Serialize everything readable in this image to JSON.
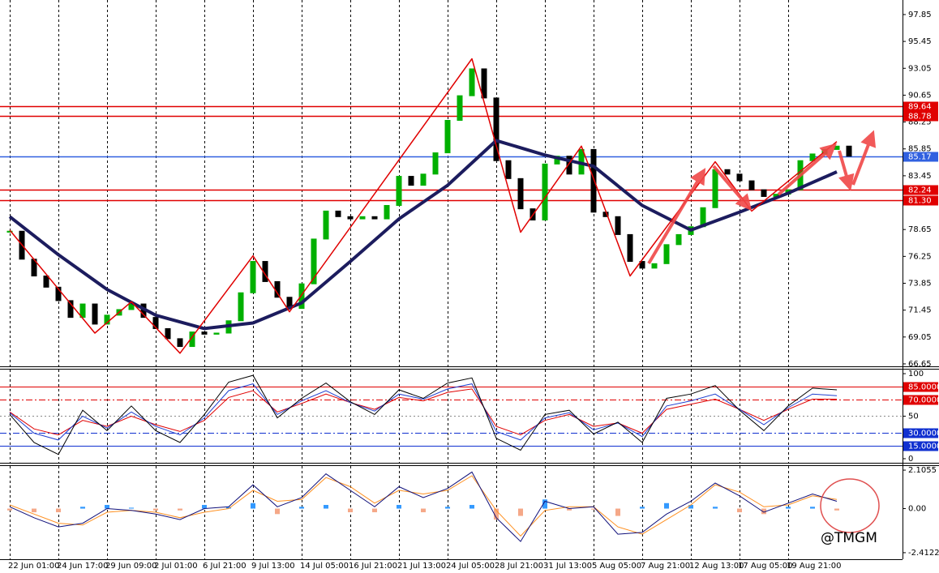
{
  "watermark": "@TMGM",
  "chart_data": [
    {
      "type": "candlestick",
      "xlim": [
        -0.8,
        73.4
      ],
      "ylim": [
        66.43,
        99.15
      ],
      "xticks": [
        {
          "value": 0,
          "label": "22 Jun 01:00"
        },
        {
          "value": 4,
          "label": "24 Jun 17:00"
        },
        {
          "value": 8,
          "label": "29 Jun 09:00"
        },
        {
          "value": 12,
          "label": "2 Jul 01:00"
        },
        {
          "value": 16,
          "label": "6 Jul 21:00"
        },
        {
          "value": 20,
          "label": "9 Jul 13:00"
        },
        {
          "value": 24,
          "label": "14 Jul 05:00"
        },
        {
          "value": 28,
          "label": "16 Jul 21:00"
        },
        {
          "value": 32,
          "label": "21 Jul 13:00"
        },
        {
          "value": 36,
          "label": "24 Jul 05:00"
        },
        {
          "value": 40,
          "label": "28 Jul 21:00"
        },
        {
          "value": 44,
          "label": "31 Jul 13:00"
        },
        {
          "value": 48,
          "label": "5 Aug 05:00"
        },
        {
          "value": 52,
          "label": "7 Aug 21:00"
        },
        {
          "value": 56,
          "label": "12 Aug 13:00"
        },
        {
          "value": 60,
          "label": "17 Aug 05:00"
        },
        {
          "value": 64,
          "label": "19 Aug 21:00"
        }
      ],
      "yticks": [
        97.85,
        95.45,
        93.05,
        90.65,
        88.25,
        85.85,
        83.45,
        81.05,
        78.65,
        76.25,
        73.85,
        71.45,
        69.05,
        66.65
      ],
      "levels": [
        {
          "value": 89.64,
          "color": "#e00000"
        },
        {
          "value": 88.78,
          "color": "#e00000"
        },
        {
          "value": 85.17,
          "color": "#3060e0"
        },
        {
          "value": 82.24,
          "color": "#e00000"
        },
        {
          "value": 81.3,
          "label": "81.30",
          "color": "#e00000"
        }
      ],
      "series": [
        {
          "color": "#00b000",
          "down_color": "#000000",
          "values": [
            78.5,
            76.0,
            74.5,
            73.5,
            72.3,
            70.8,
            72.0,
            70.2,
            71.0,
            71.5,
            72.0,
            70.8,
            69.8,
            68.9,
            68.2,
            69.5,
            69.3,
            69.4,
            70.5,
            73.0,
            75.8,
            74.0,
            72.6,
            71.6,
            73.8,
            77.8,
            80.3,
            79.8,
            79.6,
            79.8,
            79.6,
            80.8,
            83.4,
            82.6,
            83.6,
            85.5,
            88.4,
            90.6,
            93.0,
            90.4,
            84.8,
            83.2,
            80.5,
            79.5,
            84.5,
            85.2,
            83.6,
            85.8,
            80.2,
            79.8,
            78.2,
            75.8,
            75.2,
            75.6,
            77.3,
            78.2,
            78.9,
            80.6,
            84.0,
            83.6,
            83.0,
            82.2,
            81.6,
            81.8,
            82.2,
            84.8,
            85.4,
            85.8,
            86.1,
            85.2
          ]
        },
        {
          "color": "#1c1c5e",
          "x": [
            0,
            4,
            8,
            12,
            16,
            20,
            24,
            28,
            32,
            36,
            40,
            44,
            48,
            52,
            56,
            60,
            64,
            68
          ],
          "values": [
            79.8,
            76.4,
            73.3,
            71.0,
            69.8,
            70.3,
            72.1,
            75.8,
            79.6,
            82.6,
            86.6,
            85.3,
            84.3,
            80.8,
            78.6,
            80.2,
            81.9,
            83.8
          ]
        },
        {
          "color": "#e00000",
          "x": [
            0,
            7,
            10,
            14,
            20,
            23,
            38,
            42,
            47,
            51,
            58,
            61,
            68
          ],
          "values": [
            78.6,
            69.4,
            72.2,
            67.6,
            76.3,
            71.3,
            93.9,
            78.4,
            86.1,
            74.5,
            84.7,
            80.3,
            86.5
          ]
        }
      ]
    },
    {
      "type": "line",
      "ylim": [
        -4.8,
        104.8
      ],
      "yticks": [
        100,
        50,
        0
      ],
      "levels": [
        {
          "value": 85,
          "label": "85.0000",
          "color": "#e00000",
          "dash": false
        },
        {
          "value": 70,
          "label": "70.0000",
          "color": "#e00000",
          "dash": true
        },
        {
          "value": 30,
          "label": "30.0000",
          "color": "#1030d0",
          "dash": true
        },
        {
          "value": 15,
          "label": "15.0000",
          "color": "#1030d0",
          "dash": false
        }
      ],
      "x": [
        0,
        2,
        4,
        6,
        8,
        10,
        12,
        14,
        16,
        18,
        20,
        22,
        24,
        26,
        28,
        30,
        32,
        34,
        36,
        38,
        40,
        42,
        44,
        46,
        48,
        50,
        52,
        54,
        56,
        58,
        60,
        62,
        64,
        66,
        68
      ],
      "series": [
        {
          "color": "#e00000",
          "values": [
            55,
            35,
            28,
            45,
            38,
            50,
            40,
            32,
            45,
            72,
            80,
            55,
            65,
            76,
            66,
            58,
            72,
            68,
            78,
            82,
            38,
            28,
            45,
            52,
            38,
            42,
            30,
            58,
            64,
            70,
            58,
            45,
            58,
            70,
            70
          ]
        },
        {
          "color": "#2040d0",
          "values": [
            54,
            30,
            22,
            50,
            36,
            55,
            38,
            28,
            48,
            80,
            88,
            52,
            68,
            80,
            66,
            56,
            76,
            70,
            82,
            88,
            32,
            22,
            48,
            54,
            34,
            42,
            26,
            62,
            68,
            76,
            58,
            40,
            60,
            76,
            74
          ]
        },
        {
          "color": "#000000",
          "values": [
            52,
            19,
            5,
            57,
            33,
            62,
            33,
            19,
            52,
            90,
            98,
            48,
            71,
            89,
            67,
            52,
            81,
            71,
            89,
            95,
            24,
            10,
            52,
            57,
            29,
            43,
            19,
            71,
            76,
            86,
            57,
            33,
            62,
            83,
            81
          ]
        }
      ]
    },
    {
      "type": "macd",
      "ylim": [
        -2.77,
        2.33
      ],
      "yticks": [
        2.1055,
        {
          "value": 0,
          "label": "0.00"
        },
        -2.4122
      ],
      "x": [
        0,
        2,
        4,
        6,
        8,
        10,
        12,
        14,
        16,
        18,
        20,
        22,
        24,
        26,
        28,
        30,
        32,
        34,
        36,
        38,
        40,
        42,
        44,
        46,
        48,
        50,
        52,
        54,
        56,
        58,
        60,
        62,
        64,
        66,
        68
      ],
      "histogram": {
        "up_color": "#3399ff",
        "down_color": "#f5a888",
        "values": [
          -0.1,
          -0.2,
          -0.2,
          0.1,
          0.2,
          0.05,
          -0.1,
          -0.1,
          0.2,
          0.1,
          0.3,
          -0.3,
          0.1,
          0.2,
          -0.2,
          -0.2,
          0.2,
          -0.2,
          0.1,
          0.2,
          -0.6,
          -0.4,
          0.5,
          -0.1,
          -0.05,
          -0.4,
          0.1,
          0.3,
          0.2,
          0.1,
          -0.2,
          -0.3,
          0.1,
          0.1,
          -0.1
        ]
      },
      "series": [
        {
          "color": "#ff9020",
          "values": [
            0.2,
            -0.3,
            -0.8,
            -0.9,
            -0.2,
            -0.1,
            -0.2,
            -0.5,
            -0.2,
            0,
            1.0,
            0.4,
            0.5,
            1.7,
            1.2,
            0.3,
            1.0,
            0.8,
            1.0,
            1.8,
            -0.1,
            -1.5,
            -0.1,
            0.1,
            0.1,
            -1.0,
            -1.4,
            -0.6,
            0.2,
            1.3,
            0.9,
            0.1,
            0.2,
            0.7,
            0.5
          ]
        },
        {
          "color": "#10107a",
          "values": [
            0.1,
            -0.5,
            -1.0,
            -0.8,
            0,
            -0.1,
            -0.3,
            -0.6,
            0,
            0.1,
            1.3,
            0.1,
            0.6,
            1.9,
            1.0,
            0.1,
            1.2,
            0.6,
            1.1,
            2.0,
            -0.5,
            -1.8,
            0.4,
            0,
            0.1,
            -1.4,
            -1.3,
            -0.3,
            0.4,
            1.4,
            0.7,
            -0.2,
            0.3,
            0.8,
            0.4
          ]
        }
      ]
    }
  ]
}
